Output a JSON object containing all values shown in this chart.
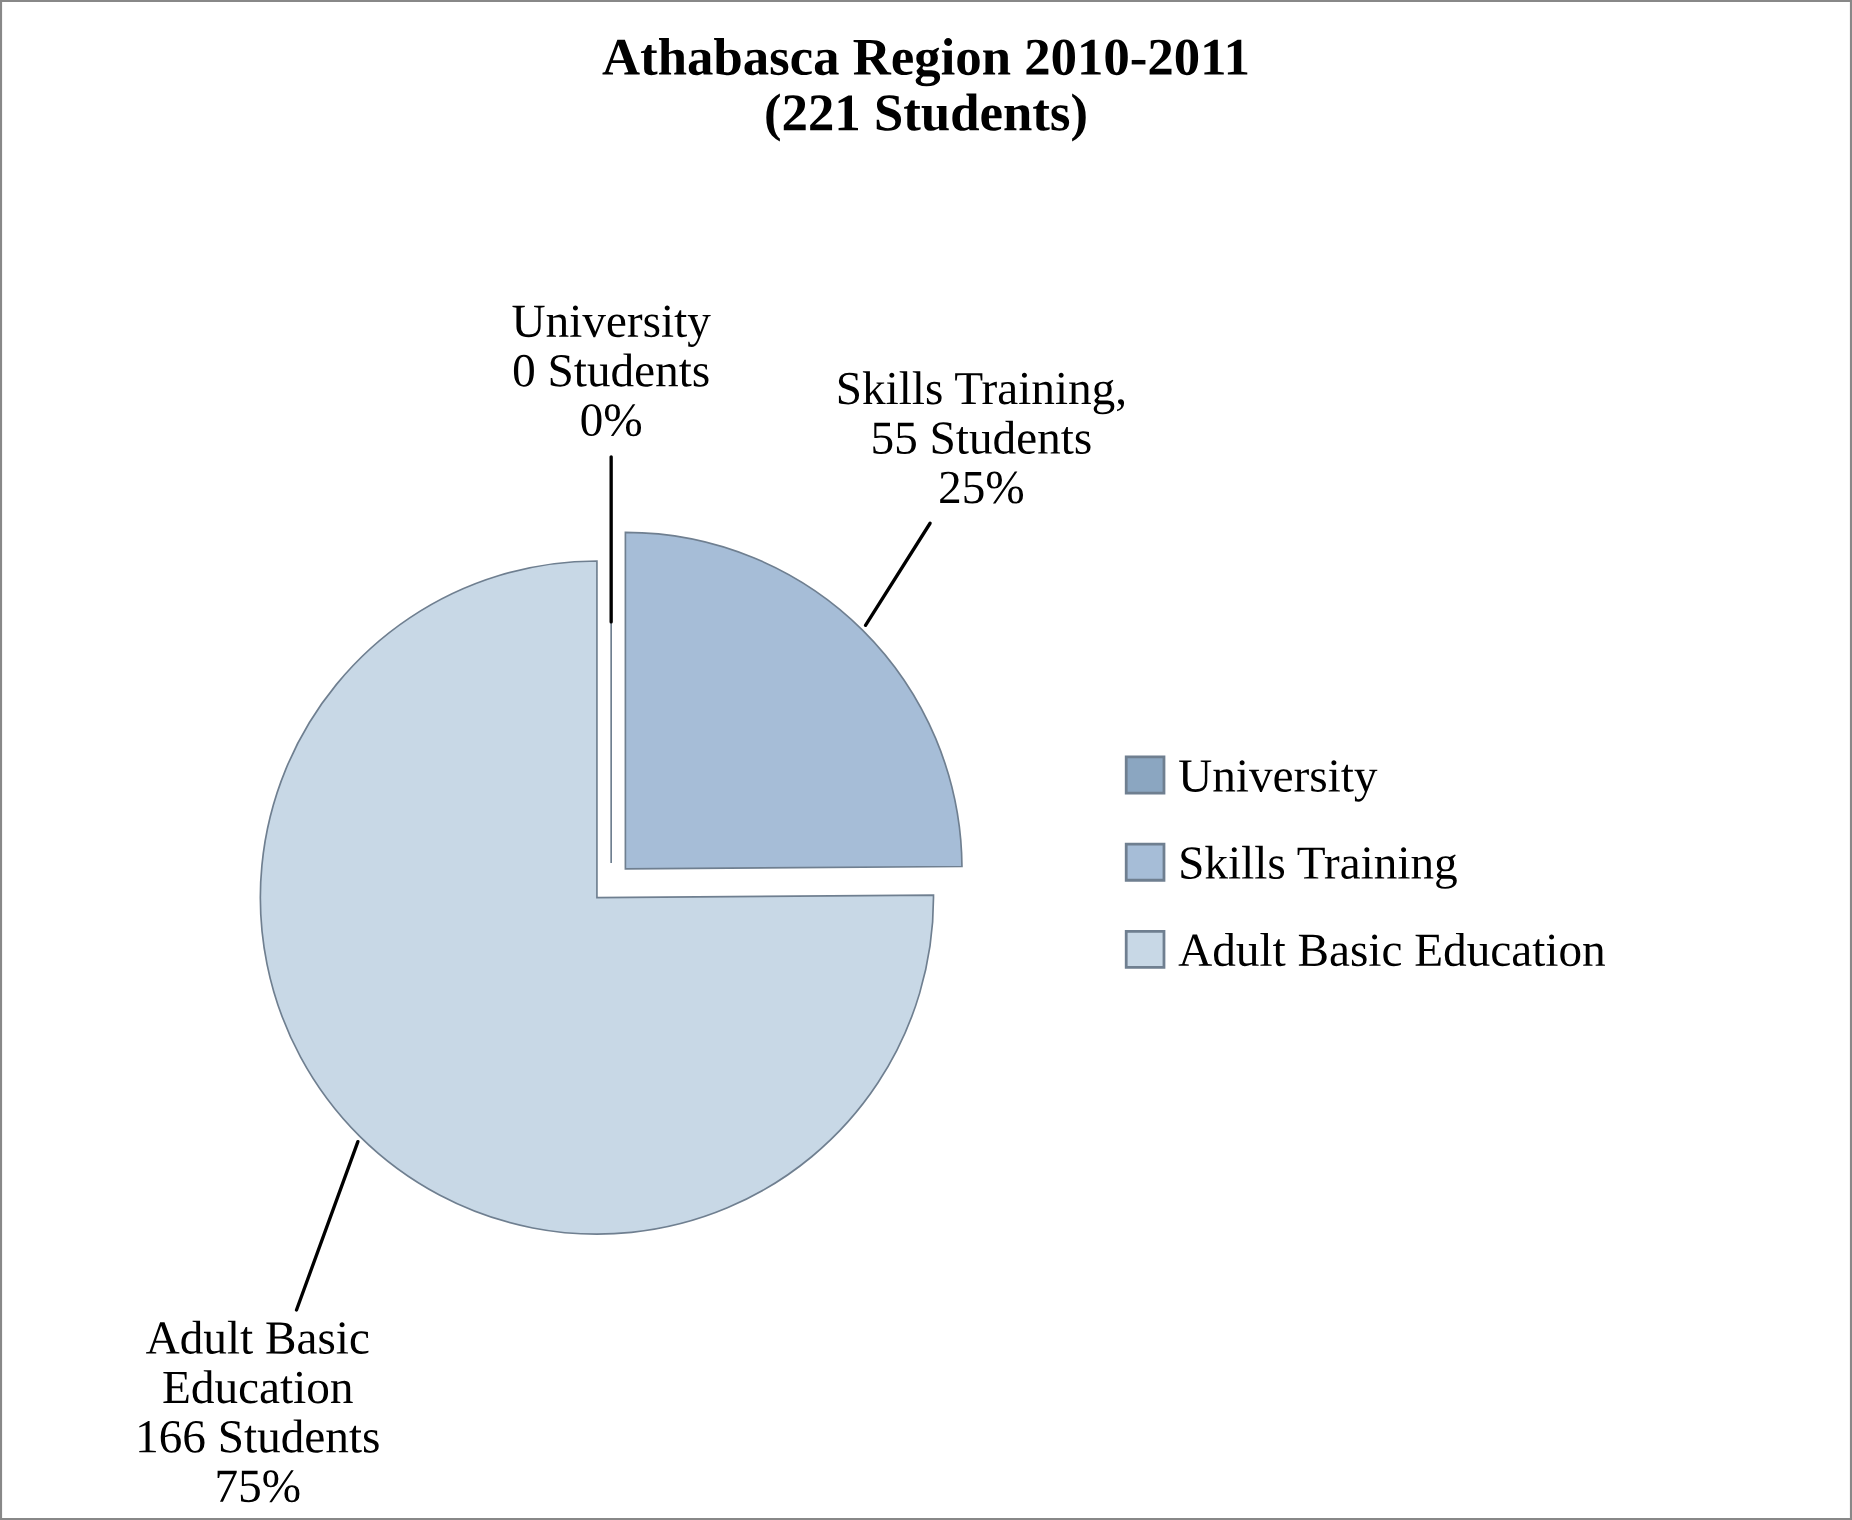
{
  "chart_data": {
    "type": "pie",
    "title": "Athabasca Region 2010-2011\n(221 Students)",
    "categories": [
      "University",
      "Skills Training",
      "Adult Basic Education"
    ],
    "values": [
      0,
      55,
      166
    ],
    "colors": [
      "#8ba6c1",
      "#a6bdd7",
      "#c8d8e6"
    ],
    "value_labels": [
      "University\n0 Students\n0%",
      "Skills Training,\n55 Students\n25%",
      "Adult Basic\nEducation\n166 Students\n75%"
    ],
    "legend": "right"
  }
}
